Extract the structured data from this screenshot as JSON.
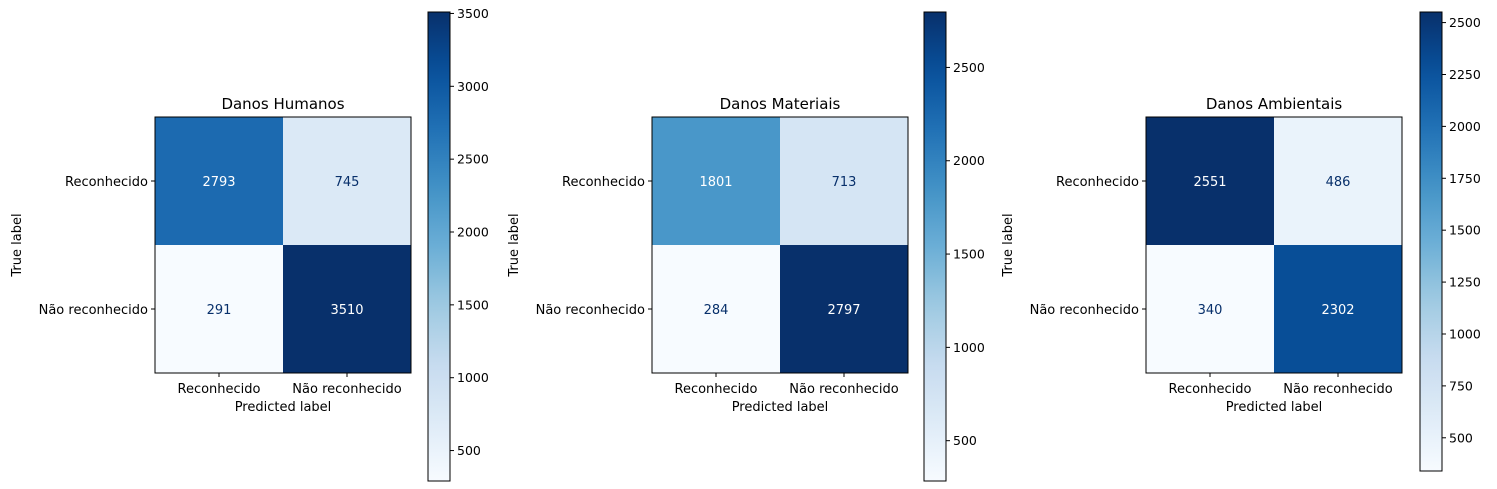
{
  "chart_data": [
    {
      "type": "heatmap",
      "title": "Danos Humanos",
      "xlabel": "Predicted label",
      "ylabel": "True label",
      "x_categories": [
        "Reconhecido",
        "Não reconhecido"
      ],
      "y_categories": [
        "Reconhecido",
        "Não reconhecido"
      ],
      "values": [
        [
          2793,
          745
        ],
        [
          291,
          3510
        ]
      ],
      "colormap": "Blues",
      "colorbar": {
        "range": [
          291,
          3510
        ],
        "ticks": [
          500,
          1000,
          1500,
          2000,
          2500,
          3000,
          3500
        ],
        "tick_labels": [
          "500",
          "1000",
          "1500",
          "2000",
          "2500",
          "3000",
          "3500"
        ]
      }
    },
    {
      "type": "heatmap",
      "title": "Danos Materiais",
      "xlabel": "Predicted label",
      "ylabel": "True label",
      "x_categories": [
        "Reconhecido",
        "Não reconhecido"
      ],
      "y_categories": [
        "Reconhecido",
        "Não reconhecido"
      ],
      "values": [
        [
          1801,
          713
        ],
        [
          284,
          2797
        ]
      ],
      "colormap": "Blues",
      "colorbar": {
        "range": [
          284,
          2797
        ],
        "ticks": [
          500,
          1000,
          1500,
          2000,
          2500
        ],
        "tick_labels": [
          "500",
          "1000",
          "1500",
          "2000",
          "2500"
        ]
      }
    },
    {
      "type": "heatmap",
      "title": "Danos Ambientais",
      "xlabel": "Predicted label",
      "ylabel": "True label",
      "x_categories": [
        "Reconhecido",
        "Não reconhecido"
      ],
      "y_categories": [
        "Reconhecido",
        "Não reconhecido"
      ],
      "values": [
        [
          2551,
          486
        ],
        [
          340,
          2302
        ]
      ],
      "colormap": "Blues",
      "colorbar": {
        "range": [
          340,
          2551
        ],
        "ticks": [
          500,
          750,
          1000,
          1250,
          1500,
          1750,
          2000,
          2250,
          2500
        ],
        "tick_labels": [
          "500",
          "750",
          "1000",
          "1250",
          "1500",
          "1750",
          "2000",
          "2250",
          "2500"
        ]
      }
    }
  ]
}
